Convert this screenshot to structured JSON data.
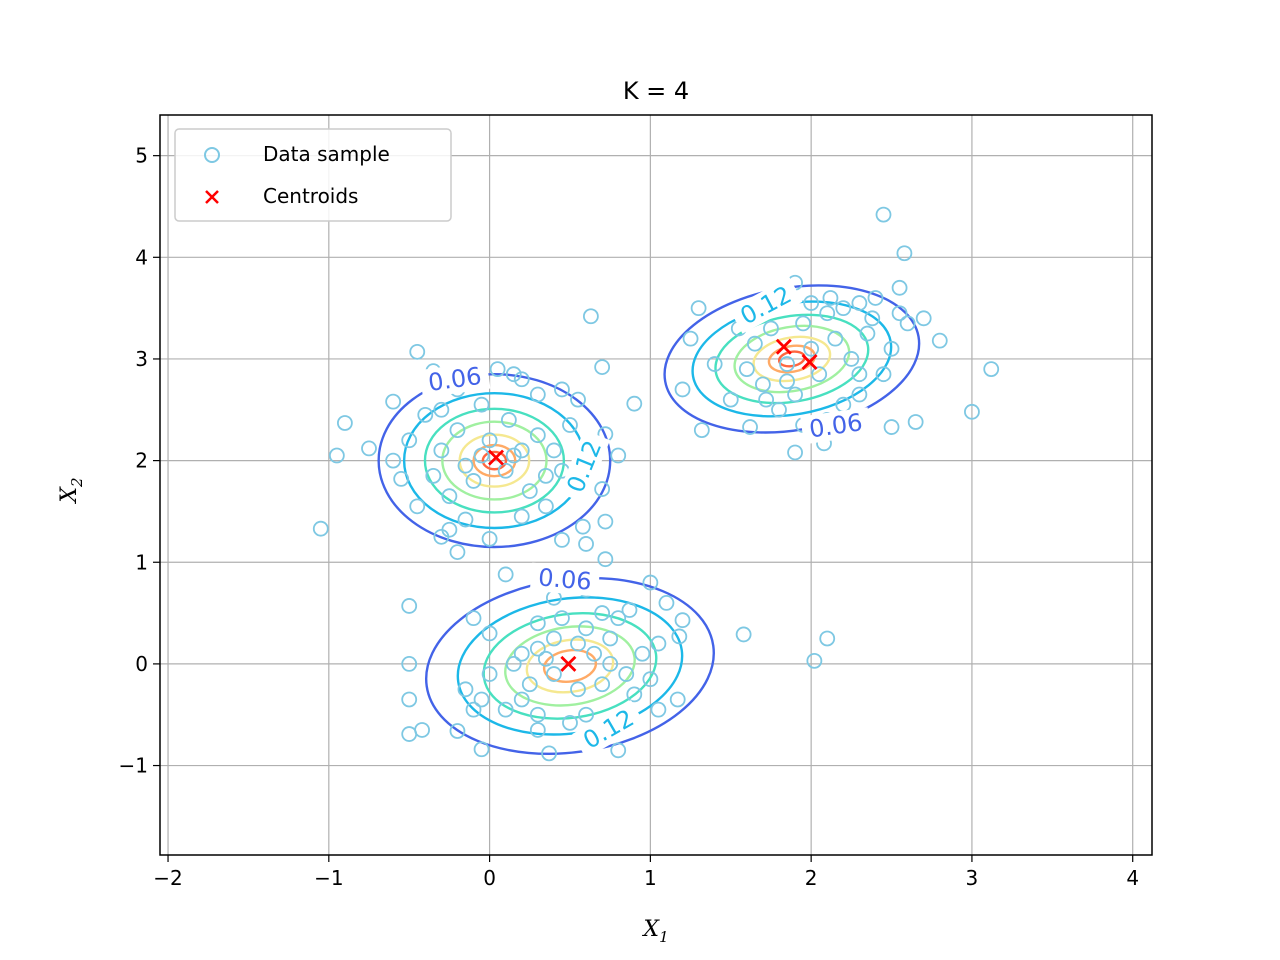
{
  "chart_data": {
    "type": "scatter",
    "title": "K = 4",
    "xlabel": "X",
    "xlabel_sub": "1",
    "ylabel": "X",
    "ylabel_sub": "2",
    "xlim": [
      -2.05,
      4.12
    ],
    "ylim": [
      -1.88,
      5.4
    ],
    "xticks": [
      -2,
      -1,
      0,
      1,
      2,
      3,
      4
    ],
    "yticks": [
      -1,
      0,
      1,
      2,
      3,
      4,
      5
    ],
    "xtick_labels": [
      "−2",
      "−1",
      "0",
      "1",
      "2",
      "3",
      "4"
    ],
    "ytick_labels": [
      "−1",
      "0",
      "1",
      "2",
      "3",
      "4",
      "5"
    ],
    "grid": true,
    "legend_position": "upper-left",
    "colors": {
      "data": "#7ec8e3",
      "centroid": "#ff0000",
      "levels": [
        "#4363e8",
        "#1cb8e8",
        "#48e0c0",
        "#a0f0a0",
        "#f5e890",
        "#ffaa66",
        "#ff6640"
      ]
    },
    "legend": [
      {
        "label": "Data sample",
        "marker": "circle"
      },
      {
        "label": "Centroids",
        "marker": "x"
      }
    ],
    "contour_label_values": [
      "0.06",
      "0.12"
    ],
    "centroids": [
      [
        0.04,
        2.03
      ],
      [
        0.49,
        0.0
      ],
      [
        1.83,
        3.12
      ],
      [
        1.99,
        2.97
      ]
    ],
    "clusters": [
      {
        "center": [
          0.03,
          2.0
        ],
        "rx": 0.72,
        "ry": 0.85,
        "angle": 0,
        "points": [
          [
            -0.9,
            2.37
          ],
          [
            -0.95,
            2.05
          ],
          [
            -1.05,
            1.33
          ],
          [
            -0.75,
            2.12
          ],
          [
            -0.6,
            2.58
          ],
          [
            -0.55,
            1.82
          ],
          [
            -0.45,
            3.07
          ],
          [
            -0.35,
            2.88
          ],
          [
            -0.4,
            2.45
          ],
          [
            -0.3,
            2.5
          ],
          [
            -0.2,
            2.7
          ],
          [
            -0.25,
            1.65
          ],
          [
            -0.15,
            1.42
          ],
          [
            -0.1,
            2.85
          ],
          [
            0.05,
            2.9
          ],
          [
            0.15,
            2.85
          ],
          [
            0.2,
            2.8
          ],
          [
            0.3,
            2.65
          ],
          [
            0.45,
            2.7
          ],
          [
            0.55,
            2.6
          ],
          [
            0.7,
            2.92
          ],
          [
            0.9,
            2.56
          ],
          [
            0.72,
            2.26
          ],
          [
            0.8,
            2.05
          ],
          [
            0.7,
            1.72
          ],
          [
            0.6,
            1.95
          ],
          [
            0.5,
            2.35
          ],
          [
            0.4,
            2.1
          ],
          [
            0.35,
            1.55
          ],
          [
            0.2,
            1.45
          ],
          [
            0.0,
            1.23
          ],
          [
            -0.2,
            1.1
          ],
          [
            -0.3,
            1.25
          ],
          [
            -0.45,
            1.55
          ],
          [
            -0.5,
            2.2
          ],
          [
            -0.6,
            2.0
          ],
          [
            -0.3,
            2.1
          ],
          [
            -0.2,
            2.3
          ],
          [
            0.0,
            2.2
          ],
          [
            0.1,
            1.9
          ],
          [
            -0.1,
            1.8
          ],
          [
            0.2,
            2.1
          ],
          [
            0.3,
            2.25
          ],
          [
            0.12,
            2.4
          ],
          [
            -0.05,
            2.55
          ],
          [
            0.45,
            1.9
          ],
          [
            0.55,
            1.75
          ],
          [
            -0.15,
            1.95
          ],
          [
            0.58,
            1.35
          ],
          [
            0.45,
            1.22
          ],
          [
            0.25,
            1.7
          ],
          [
            -0.35,
            1.85
          ],
          [
            0.35,
            1.85
          ],
          [
            0.15,
            2.05
          ],
          [
            -0.05,
            2.05
          ],
          [
            0.6,
            1.18
          ],
          [
            0.72,
            1.4
          ],
          [
            -0.25,
            1.32
          ]
        ]
      },
      {
        "center": [
          0.5,
          -0.02
        ],
        "rx": 0.9,
        "ry": 0.85,
        "angle": -8,
        "points": [
          [
            -0.5,
            0.57
          ],
          [
            -0.5,
            0.0
          ],
          [
            -0.5,
            -0.35
          ],
          [
            -0.5,
            -0.69
          ],
          [
            -0.42,
            -0.65
          ],
          [
            -0.2,
            -0.66
          ],
          [
            -0.1,
            -0.45
          ],
          [
            -0.05,
            -0.35
          ],
          [
            -0.05,
            -0.84
          ],
          [
            -0.1,
            0.45
          ],
          [
            0.0,
            0.3
          ],
          [
            0.1,
            0.88
          ],
          [
            0.2,
            0.1
          ],
          [
            0.3,
            0.4
          ],
          [
            0.4,
            0.65
          ],
          [
            0.5,
            0.85
          ],
          [
            0.6,
            0.73
          ],
          [
            0.72,
            1.03
          ],
          [
            0.7,
            0.5
          ],
          [
            0.8,
            0.45
          ],
          [
            0.87,
            0.53
          ],
          [
            1.0,
            0.8
          ],
          [
            1.1,
            0.6
          ],
          [
            1.2,
            0.43
          ],
          [
            1.18,
            0.27
          ],
          [
            1.05,
            0.2
          ],
          [
            1.0,
            -0.15
          ],
          [
            1.05,
            -0.45
          ],
          [
            1.17,
            -0.35
          ],
          [
            0.8,
            -0.85
          ],
          [
            0.7,
            -0.65
          ],
          [
            0.6,
            -0.5
          ],
          [
            0.5,
            -0.58
          ],
          [
            0.37,
            -0.88
          ],
          [
            0.3,
            -0.5
          ],
          [
            0.2,
            -0.35
          ],
          [
            0.1,
            -0.45
          ],
          [
            0.0,
            -0.1
          ],
          [
            0.15,
            0.0
          ],
          [
            0.3,
            0.15
          ],
          [
            0.4,
            0.25
          ],
          [
            0.55,
            0.2
          ],
          [
            0.65,
            0.1
          ],
          [
            0.75,
            0.0
          ],
          [
            0.85,
            -0.1
          ],
          [
            0.9,
            -0.3
          ],
          [
            0.7,
            -0.2
          ],
          [
            0.55,
            -0.25
          ],
          [
            0.4,
            -0.1
          ],
          [
            0.25,
            -0.2
          ],
          [
            0.6,
            0.35
          ],
          [
            0.45,
            0.45
          ],
          [
            0.35,
            0.05
          ],
          [
            0.75,
            0.25
          ],
          [
            0.95,
            0.1
          ],
          [
            0.3,
            -0.65
          ],
          [
            -0.15,
            -0.25
          ]
        ]
      },
      {
        "center": [
          1.88,
          3.0
        ],
        "rx": 0.8,
        "ry": 0.7,
        "angle": -10,
        "points": [
          [
            1.3,
            3.5
          ],
          [
            1.25,
            3.2
          ],
          [
            1.2,
            2.7
          ],
          [
            1.32,
            2.3
          ],
          [
            1.5,
            2.6
          ],
          [
            1.6,
            2.9
          ],
          [
            1.55,
            3.3
          ],
          [
            1.7,
            3.5
          ],
          [
            1.8,
            3.65
          ],
          [
            1.9,
            3.75
          ],
          [
            2.0,
            3.55
          ],
          [
            2.1,
            3.45
          ],
          [
            2.2,
            3.5
          ],
          [
            2.3,
            3.55
          ],
          [
            2.4,
            3.6
          ],
          [
            2.55,
            3.45
          ],
          [
            2.6,
            3.35
          ],
          [
            2.5,
            3.1
          ],
          [
            2.45,
            2.85
          ],
          [
            2.3,
            2.65
          ],
          [
            2.2,
            2.55
          ],
          [
            2.1,
            2.4
          ],
          [
            1.95,
            2.35
          ],
          [
            1.8,
            2.5
          ],
          [
            1.9,
            2.08
          ],
          [
            2.08,
            2.17
          ],
          [
            1.7,
            2.75
          ],
          [
            1.85,
            2.95
          ],
          [
            2.0,
            3.1
          ],
          [
            2.15,
            3.2
          ],
          [
            2.25,
            3.0
          ],
          [
            2.35,
            3.25
          ],
          [
            1.65,
            3.15
          ],
          [
            1.75,
            3.3
          ],
          [
            1.95,
            3.35
          ],
          [
            2.05,
            2.85
          ],
          [
            1.9,
            2.65
          ],
          [
            2.3,
            2.85
          ],
          [
            2.45,
            4.42
          ],
          [
            2.58,
            4.04
          ],
          [
            2.55,
            3.7
          ],
          [
            2.7,
            3.4
          ],
          [
            2.8,
            3.18
          ],
          [
            2.65,
            2.38
          ],
          [
            2.5,
            2.33
          ],
          [
            3.0,
            2.48
          ],
          [
            3.12,
            2.9
          ],
          [
            1.58,
            0.29
          ],
          [
            2.02,
            0.03
          ],
          [
            2.1,
            0.25
          ],
          [
            0.63,
            3.42
          ],
          [
            1.62,
            2.33
          ],
          [
            2.38,
            3.4
          ],
          [
            1.4,
            2.95
          ],
          [
            2.12,
            3.6
          ],
          [
            1.85,
            2.78
          ],
          [
            1.72,
            2.6
          ]
        ]
      }
    ]
  }
}
